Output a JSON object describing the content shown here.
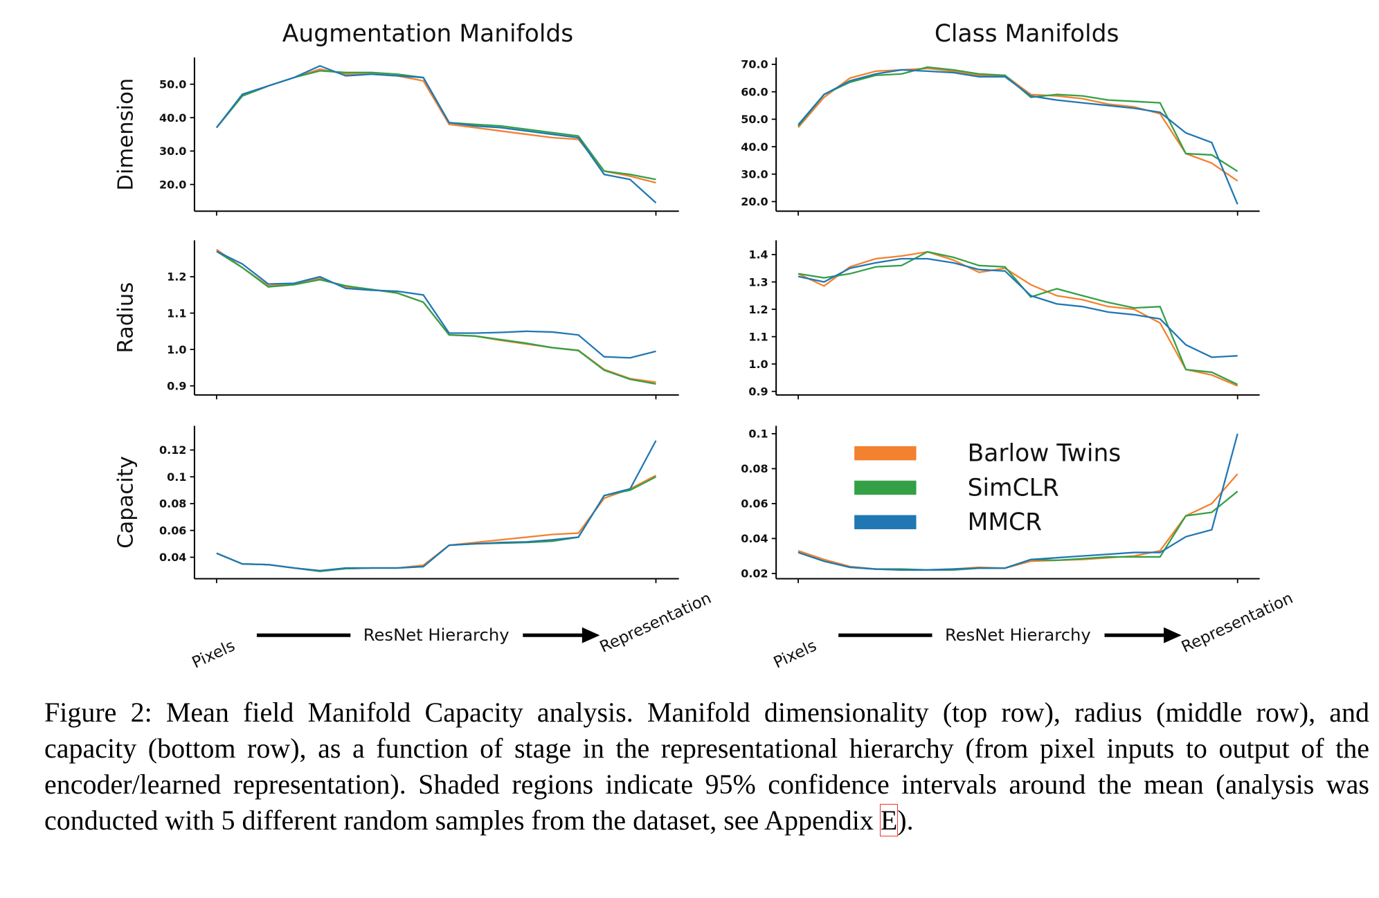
{
  "chart_data": [
    {
      "type": "line",
      "title": "Augmentation Manifolds",
      "ylabel": "Dimension",
      "ylim": [
        12,
        58
      ],
      "yticks": [
        {
          "value": 20,
          "label": "20.0"
        },
        {
          "value": 30,
          "label": "30.0"
        },
        {
          "value": 40,
          "label": "40.0"
        },
        {
          "value": 50,
          "label": "50.0"
        }
      ],
      "series": [
        {
          "color": "#f28130",
          "values": [
            37,
            46.5,
            49.5,
            52,
            54.5,
            53,
            53,
            52.5,
            51,
            38,
            37,
            36,
            35,
            34,
            33.5,
            24,
            22.5,
            20.5
          ]
        },
        {
          "color": "#34a046",
          "values": [
            37,
            46.5,
            49.5,
            52,
            54,
            53.5,
            53.5,
            53,
            52,
            38.5,
            38,
            37.5,
            36.5,
            35.5,
            34.5,
            24,
            23,
            21.5
          ]
        },
        {
          "color": "#2077b4",
          "values": [
            37,
            47,
            49.5,
            52,
            55.5,
            52.5,
            53,
            52.5,
            52,
            38.5,
            37.5,
            37,
            36,
            35,
            34,
            23,
            21.5,
            14.5
          ]
        }
      ]
    },
    {
      "type": "line",
      "title": "Class Manifolds",
      "ylim": [
        16.5,
        72.5
      ],
      "yticks": [
        {
          "value": 20,
          "label": "20.0"
        },
        {
          "value": 30,
          "label": "30.0"
        },
        {
          "value": 40,
          "label": "40.0"
        },
        {
          "value": 50,
          "label": "50.0"
        },
        {
          "value": 60,
          "label": "60.0"
        },
        {
          "value": 70,
          "label": "70.0"
        }
      ],
      "series": [
        {
          "color": "#f28130",
          "values": [
            47,
            58,
            65,
            67.5,
            68,
            68.5,
            67.5,
            66,
            66,
            59,
            58.5,
            57.5,
            55.5,
            54.5,
            52,
            37.5,
            34,
            27.5
          ]
        },
        {
          "color": "#34a046",
          "values": [
            47.5,
            59,
            63.5,
            66,
            66.5,
            69,
            68,
            66.5,
            66,
            58,
            59,
            58.5,
            57,
            56.5,
            56,
            37.5,
            37,
            31
          ]
        },
        {
          "color": "#2077b4",
          "values": [
            48,
            59,
            64,
            66.5,
            68,
            67.5,
            67,
            65.5,
            65.5,
            58.5,
            57,
            56,
            55,
            54,
            52.5,
            45,
            41.5,
            19
          ]
        }
      ]
    },
    {
      "type": "line",
      "ylabel": "Radius",
      "ylim": [
        0.875,
        1.3
      ],
      "yticks": [
        0.9,
        {
          "value": 1,
          "label": "1.0"
        },
        1.1,
        1.2
      ],
      "series": [
        {
          "color": "#f28130",
          "values": [
            1.275,
            1.225,
            1.175,
            1.18,
            1.195,
            1.172,
            1.165,
            1.155,
            1.13,
            1.04,
            1.037,
            1.025,
            1.015,
            1.005,
            0.998,
            0.945,
            0.92,
            0.91
          ]
        },
        {
          "color": "#34a046",
          "values": [
            1.27,
            1.225,
            1.172,
            1.178,
            1.192,
            1.175,
            1.165,
            1.155,
            1.13,
            1.04,
            1.037,
            1.027,
            1.017,
            1.005,
            0.997,
            0.943,
            0.918,
            0.905
          ]
        },
        {
          "color": "#2077b4",
          "values": [
            1.27,
            1.235,
            1.18,
            1.182,
            1.2,
            1.168,
            1.163,
            1.16,
            1.15,
            1.045,
            1.045,
            1.047,
            1.05,
            1.048,
            1.04,
            0.98,
            0.977,
            0.995
          ]
        }
      ]
    },
    {
      "type": "line",
      "ylim": [
        0.887,
        1.452
      ],
      "yticks": [
        0.9,
        {
          "value": 1,
          "label": "1.0"
        },
        1.1,
        1.2,
        1.3,
        1.4
      ],
      "series": [
        {
          "color": "#f28130",
          "values": [
            1.33,
            1.285,
            1.355,
            1.385,
            1.395,
            1.41,
            1.38,
            1.335,
            1.35,
            1.29,
            1.25,
            1.235,
            1.21,
            1.2,
            1.15,
            0.98,
            0.96,
            0.92
          ]
        },
        {
          "color": "#34a046",
          "values": [
            1.33,
            1.315,
            1.33,
            1.355,
            1.36,
            1.41,
            1.39,
            1.36,
            1.355,
            1.245,
            1.275,
            1.25,
            1.225,
            1.205,
            1.21,
            0.98,
            0.97,
            0.925
          ]
        },
        {
          "color": "#2077b4",
          "values": [
            1.32,
            1.3,
            1.35,
            1.37,
            1.385,
            1.385,
            1.37,
            1.345,
            1.34,
            1.25,
            1.22,
            1.21,
            1.19,
            1.18,
            1.165,
            1.07,
            1.025,
            1.03
          ]
        }
      ]
    },
    {
      "type": "line",
      "ylabel": "Capacity",
      "xlabel": "ResNet Hierarchy",
      "categories": [
        "Pixels",
        null,
        null,
        null,
        null,
        null,
        null,
        null,
        null,
        null,
        null,
        null,
        null,
        null,
        null,
        null,
        null,
        "Representation"
      ],
      "ylim": [
        0.024,
        0.138
      ],
      "yticks": [
        0.04,
        0.06,
        0.08,
        0.1,
        0.12
      ],
      "series": [
        {
          "color": "#f28130",
          "values": [
            0.043,
            0.035,
            0.0345,
            0.032,
            0.03,
            0.0315,
            0.032,
            0.032,
            0.034,
            0.049,
            0.051,
            0.053,
            0.055,
            0.057,
            0.058,
            0.084,
            0.091,
            0.101
          ]
        },
        {
          "color": "#34a046",
          "values": [
            0.043,
            0.035,
            0.0345,
            0.032,
            0.0295,
            0.0315,
            0.032,
            0.032,
            0.033,
            0.049,
            0.05,
            0.0505,
            0.051,
            0.052,
            0.055,
            0.086,
            0.09,
            0.1
          ]
        },
        {
          "color": "#2077b4",
          "values": [
            0.043,
            0.035,
            0.0345,
            0.032,
            0.03,
            0.032,
            0.032,
            0.032,
            0.033,
            0.049,
            0.05,
            0.051,
            0.0515,
            0.053,
            0.055,
            0.086,
            0.091,
            0.127
          ]
        }
      ]
    },
    {
      "type": "line",
      "xlabel": "ResNet Hierarchy",
      "legend": "upper center",
      "categories": [
        "Pixels",
        null,
        null,
        null,
        null,
        null,
        null,
        null,
        null,
        null,
        null,
        null,
        null,
        null,
        null,
        null,
        null,
        "Representation"
      ],
      "ylim": [
        0.017,
        0.1045
      ],
      "yticks": [
        0.02,
        0.04,
        0.06,
        0.08,
        0.1
      ],
      "series": [
        {
          "name": "Barlow Twins",
          "color": "#f28130",
          "values": [
            0.033,
            0.028,
            0.024,
            0.0225,
            0.022,
            0.022,
            0.0225,
            0.0235,
            0.023,
            0.027,
            0.0275,
            0.028,
            0.029,
            0.03,
            0.033,
            0.053,
            0.06,
            0.077
          ]
        },
        {
          "name": "SimCLR",
          "color": "#34a046",
          "values": [
            0.032,
            0.027,
            0.0235,
            0.0225,
            0.0225,
            0.022,
            0.022,
            0.023,
            0.023,
            0.028,
            0.0275,
            0.0285,
            0.0295,
            0.0295,
            0.0295,
            0.053,
            0.055,
            0.067
          ]
        },
        {
          "name": "MMCR",
          "color": "#2077b4",
          "values": [
            0.032,
            0.027,
            0.0235,
            0.0225,
            0.022,
            0.022,
            0.0225,
            0.023,
            0.023,
            0.028,
            0.029,
            0.03,
            0.031,
            0.032,
            0.032,
            0.041,
            0.045,
            0.1
          ]
        }
      ]
    }
  ],
  "caption": {
    "text": "Figure 2: Mean field Manifold Capacity analysis. Manifold dimensionality (top row), radius (middle row), and capacity (bottom row), as a function of stage in the representational hierarchy (from pixel inputs to output of the encoder/learned representation). Shaded regions indicate 95% confidence intervals around the mean (analysis was conducted with 5 different random samples from the dataset, see Appendix ",
    "link": "E",
    "end": ")."
  }
}
